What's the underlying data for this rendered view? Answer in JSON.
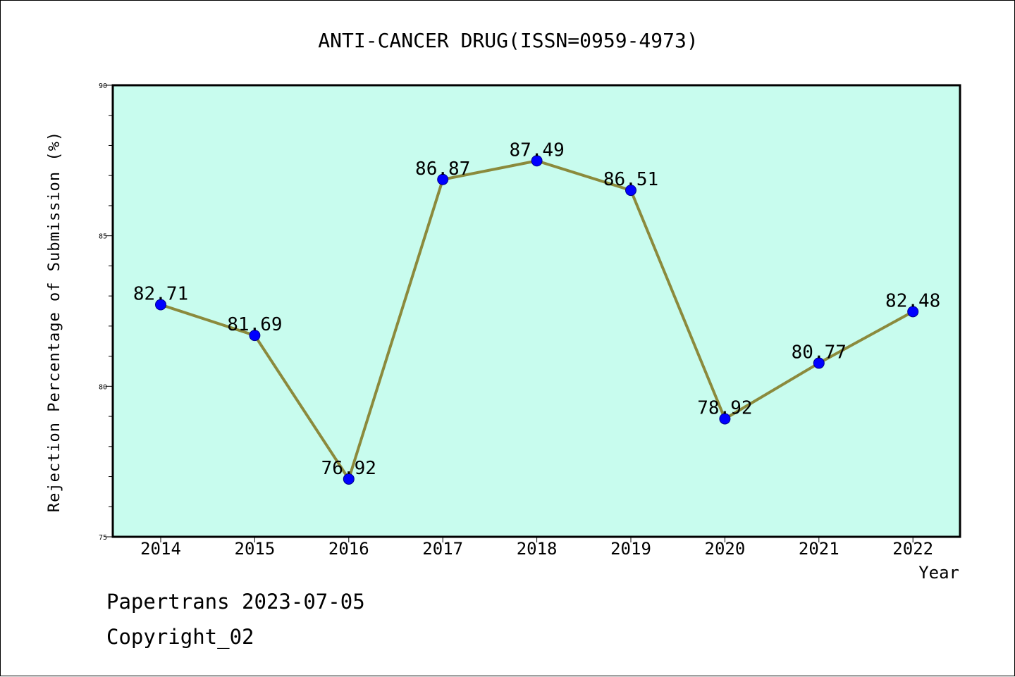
{
  "chart_data": {
    "type": "line",
    "title": "ANTI-CANCER DRUG(ISSN=0959-4973)",
    "xlabel": "Year",
    "ylabel": "Rejection Percentage of Submission (%)",
    "categories": [
      "2014",
      "2015",
      "2016",
      "2017",
      "2018",
      "2019",
      "2020",
      "2021",
      "2022"
    ],
    "series": [
      {
        "values": [
          82.71,
          81.69,
          76.92,
          86.87,
          87.49,
          86.51,
          78.92,
          80.77,
          82.48
        ]
      }
    ],
    "data_labels": [
      "82.71",
      "81.69",
      "76.92",
      "86.87",
      "87.49",
      "86.51",
      "78.92",
      "80.77",
      "82.48"
    ],
    "ylim": [
      75,
      90
    ],
    "yticks": [
      "75",
      "80",
      "85",
      "90"
    ],
    "grid": false,
    "legend": "none"
  },
  "colors": {
    "plot_background": "#c8fcee",
    "line": "#8b8a3c",
    "marker": "#0000ff"
  },
  "footer": {
    "line1": "Papertrans 2023-07-05",
    "line2": "Copyright_02"
  }
}
